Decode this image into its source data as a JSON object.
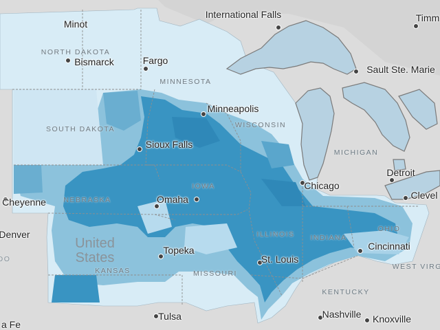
{
  "map": {
    "colors": {
      "background": "#dcdcdc",
      "water": "#b7d2e2",
      "water_outline": "#7a7a7a",
      "choropleth_light": "#d8ecf6",
      "choropleth_mid": "#8cc2dc",
      "choropleth_dark": "#3994c2"
    },
    "cities": [
      {
        "key": "minot",
        "name": "Minot"
      },
      {
        "key": "bismarck",
        "name": "Bismarck"
      },
      {
        "key": "fargo",
        "name": "Fargo"
      },
      {
        "key": "international_falls",
        "name": "International Falls"
      },
      {
        "key": "timmins",
        "name": "Timm"
      },
      {
        "key": "sault_ste_marie",
        "name": "Sault Ste. Marie"
      },
      {
        "key": "minneapolis",
        "name": "Minneapolis"
      },
      {
        "key": "sioux_falls",
        "name": "Sioux Falls"
      },
      {
        "key": "chicago",
        "name": "Chicago"
      },
      {
        "key": "detroit",
        "name": "Detroit"
      },
      {
        "key": "cleveland",
        "name": "Clevel"
      },
      {
        "key": "cheyenne",
        "name": "Cheyenne"
      },
      {
        "key": "omaha",
        "name": "Omaha"
      },
      {
        "key": "denver",
        "name": "Denver"
      },
      {
        "key": "topeka",
        "name": "Topeka"
      },
      {
        "key": "st_louis",
        "name": "St. Louis"
      },
      {
        "key": "cincinnati",
        "name": "Cincinnati"
      },
      {
        "key": "tulsa",
        "name": "Tulsa"
      },
      {
        "key": "nashville",
        "name": "Nashville"
      },
      {
        "key": "knoxville",
        "name": "Knoxville"
      },
      {
        "key": "santa_fe",
        "name": "a Fe"
      }
    ],
    "states": [
      {
        "key": "north_dakota",
        "name": "NORTH DAKOTA"
      },
      {
        "key": "minnesota",
        "name": "MINNESOTA"
      },
      {
        "key": "south_dakota",
        "name": "SOUTH DAKOTA"
      },
      {
        "key": "wisconsin",
        "name": "WISCONSIN"
      },
      {
        "key": "michigan",
        "name": "MICHIGAN"
      },
      {
        "key": "nebraska",
        "name": "NEBRASKA"
      },
      {
        "key": "iowa",
        "name": "IOWA"
      },
      {
        "key": "illinois",
        "name": "ILLINOIS"
      },
      {
        "key": "indiana",
        "name": "INDIANA"
      },
      {
        "key": "ohio",
        "name": "OHIO"
      },
      {
        "key": "kansas",
        "name": "KANSAS"
      },
      {
        "key": "missouri",
        "name": "MISSOURI"
      },
      {
        "key": "west_virginia",
        "name": "WEST VIRGI"
      },
      {
        "key": "kentucky",
        "name": "KENTUCKY"
      }
    ],
    "country": {
      "line1": "United",
      "line2": "States"
    },
    "edge_fragment": "DO"
  }
}
